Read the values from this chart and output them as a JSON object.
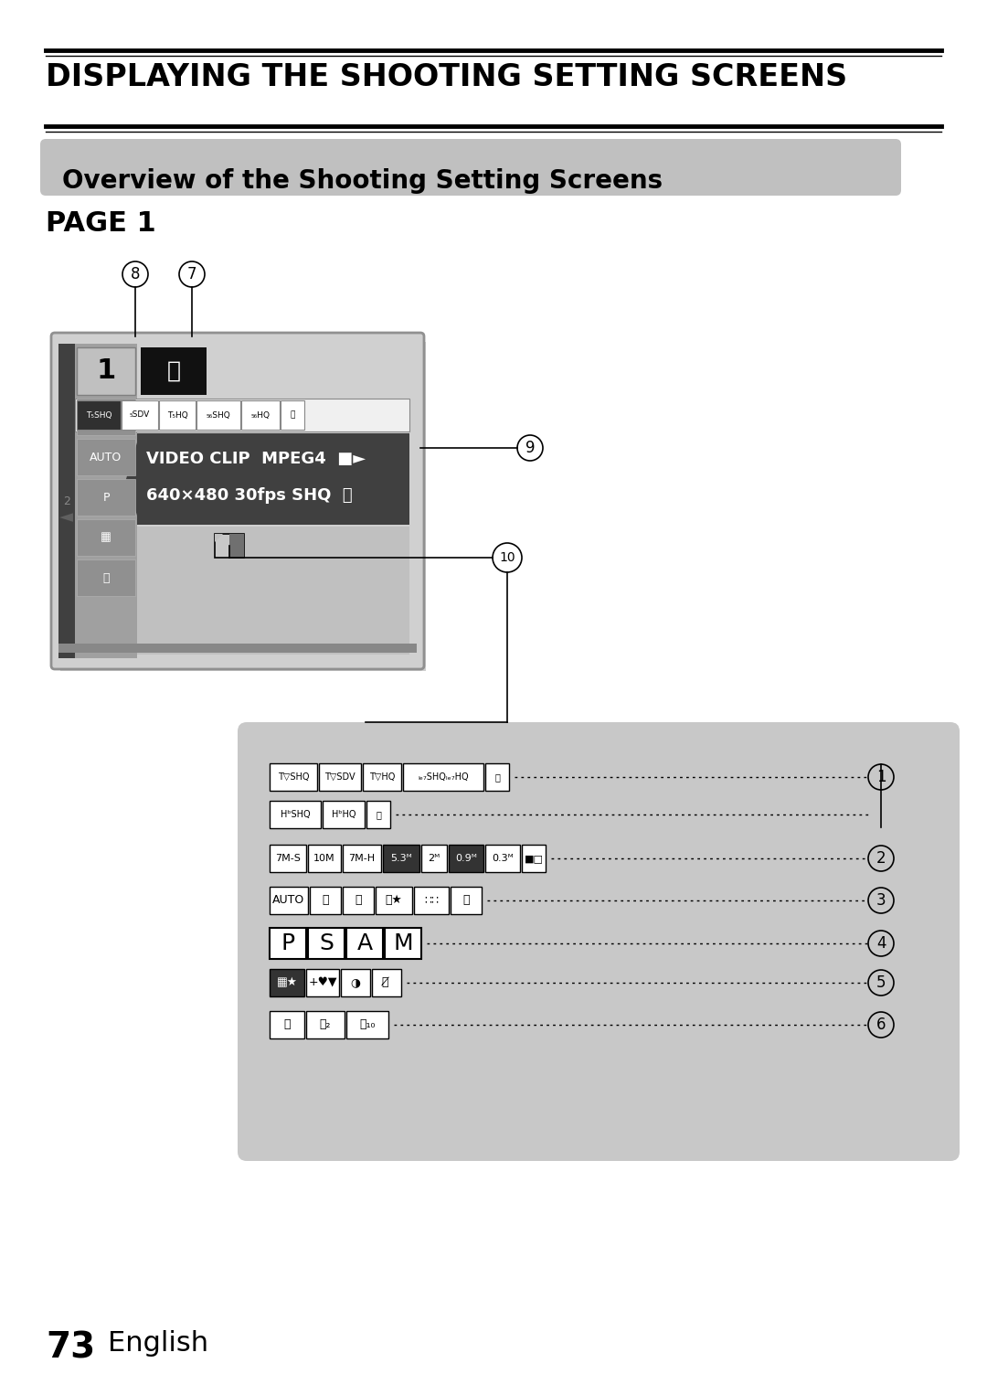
{
  "title_main": "DISPLAYING THE SHOOTING SETTING SCREENS",
  "subtitle": "Overview of the Shooting Setting Screens",
  "page_label": "PAGE 1",
  "footer_number": "73",
  "footer_text": "English",
  "bg_color": "#ffffff",
  "panel_bg": "#c8c8c8",
  "cam_outer_bg": "#d0d0d0",
  "cam_light_bg": "#c0c0c0",
  "cam_dark_bg": "#484848",
  "cam_menu_bg": "#383838",
  "cam_highlight_bg": "#606060"
}
